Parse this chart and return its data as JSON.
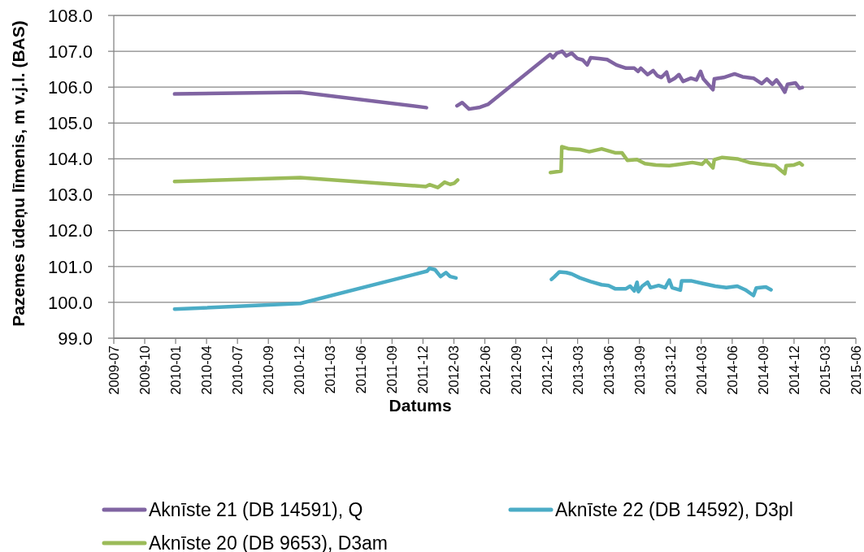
{
  "chart_data": {
    "type": "line",
    "xlabel": "Datums",
    "ylabel": "Pazemes ūdeņu līmenis, m v.j.l. (BAS)",
    "xlim": [
      "2009-07-06",
      "2015-06-05"
    ],
    "xticks": [
      {
        "value": "2009-07-06",
        "label": "2009-07"
      },
      {
        "value": "2009-10-04",
        "label": "2009-10"
      },
      {
        "value": "2010-01-02",
        "label": "2010-01"
      },
      {
        "value": "2010-04-02",
        "label": "2010-04"
      },
      {
        "value": "2010-07-01",
        "label": "2010-07"
      },
      {
        "value": "2010-09-29",
        "label": "2010-09"
      },
      {
        "value": "2010-12-28",
        "label": "2010-12"
      },
      {
        "value": "2011-03-28",
        "label": "2011-03"
      },
      {
        "value": "2011-06-26",
        "label": "2011-06"
      },
      {
        "value": "2011-09-24",
        "label": "2011-09"
      },
      {
        "value": "2011-12-23",
        "label": "2011-12"
      },
      {
        "value": "2012-03-22",
        "label": "2012-03"
      },
      {
        "value": "2012-06-20",
        "label": "2012-06"
      },
      {
        "value": "2012-09-18",
        "label": "2012-09"
      },
      {
        "value": "2012-12-17",
        "label": "2012-12"
      },
      {
        "value": "2013-03-17",
        "label": "2013-03"
      },
      {
        "value": "2013-06-15",
        "label": "2013-06"
      },
      {
        "value": "2013-09-13",
        "label": "2013-09"
      },
      {
        "value": "2013-12-12",
        "label": "2013-12"
      },
      {
        "value": "2014-03-12",
        "label": "2014-03"
      },
      {
        "value": "2014-06-10",
        "label": "2014-06"
      },
      {
        "value": "2014-09-08",
        "label": "2014-09"
      },
      {
        "value": "2014-12-07",
        "label": "2014-12"
      },
      {
        "value": "2015-03-07",
        "label": "2015-03"
      },
      {
        "value": "2015-06-05",
        "label": "2015-06"
      }
    ],
    "ylim": [
      99,
      108
    ],
    "yticks": [
      {
        "value": 99,
        "label": "99.0"
      },
      {
        "value": 100,
        "label": "100.0"
      },
      {
        "value": 101,
        "label": "101.0"
      },
      {
        "value": 102,
        "label": "102.0"
      },
      {
        "value": 103,
        "label": "103.0"
      },
      {
        "value": 104,
        "label": "104.0"
      },
      {
        "value": 105,
        "label": "105.0"
      },
      {
        "value": 106,
        "label": "106.0"
      },
      {
        "value": 107,
        "label": "107.0"
      },
      {
        "value": 108,
        "label": "108.0"
      }
    ],
    "grid": "y",
    "legend": "bottom",
    "marker": "none",
    "series": [
      {
        "name": "Aknīste 21 (DB 14591), Q",
        "color": "#8064a2",
        "x": [
          "2009-12-30",
          "2010-12-31",
          "2012-01-02",
          "2012-02-15",
          "2012-03-31",
          "2012-04-15",
          "2012-05-05",
          "2012-06-06",
          "2012-06-29",
          "2012-12-27",
          "2013-01-04",
          "2013-01-16",
          "2013-01-31",
          "2013-02-12",
          "2013-02-28",
          "2013-03-16",
          "2013-04-01",
          "2013-04-14",
          "2013-04-24",
          "2013-05-18",
          "2013-06-11",
          "2013-07-08",
          "2013-08-05",
          "2013-08-29",
          "2013-09-09",
          "2013-09-17",
          "2013-10-07",
          "2013-10-23",
          "2013-11-04",
          "2013-11-16",
          "2013-12-01",
          "2013-12-09",
          "2013-12-25",
          "2014-01-06",
          "2014-01-18",
          "2014-02-10",
          "2014-02-26",
          "2014-03-10",
          "2014-03-18",
          "2014-04-15",
          "2014-04-19",
          "2014-05-16",
          "2014-06-17",
          "2014-07-10",
          "2014-08-11",
          "2014-09-04",
          "2014-09-19",
          "2014-10-05",
          "2014-10-17",
          "2014-10-29",
          "2014-11-10",
          "2014-11-18",
          "2014-12-11",
          "2014-12-23",
          "2014-12-31"
        ],
        "values": [
          105.81,
          105.86,
          105.43,
          null,
          105.48,
          105.57,
          105.39,
          105.44,
          105.52,
          106.91,
          106.82,
          106.95,
          107.0,
          106.87,
          106.95,
          106.8,
          106.76,
          106.62,
          106.82,
          106.8,
          106.77,
          106.62,
          106.53,
          106.53,
          106.44,
          106.53,
          106.35,
          106.46,
          106.32,
          106.27,
          106.42,
          106.16,
          106.25,
          106.35,
          106.16,
          106.25,
          106.2,
          106.44,
          106.23,
          105.93,
          106.23,
          106.27,
          106.37,
          106.29,
          106.25,
          106.1,
          106.23,
          106.08,
          106.2,
          106.05,
          105.86,
          106.08,
          106.12,
          105.97,
          105.99
        ]
      },
      {
        "name": "Aknīste 22 (DB 14592), D3pl",
        "color": "#4bacc6",
        "x": [
          "2009-12-30",
          "2010-12-31",
          "2012-01-04",
          "2012-01-11",
          "2012-01-27",
          "2012-02-12",
          "2012-02-28",
          "2012-03-11",
          "2012-03-28",
          "2012-08-01",
          "2012-12-31",
          "2013-01-08",
          "2013-01-23",
          "2013-02-12",
          "2013-02-28",
          "2013-03-24",
          "2013-04-24",
          "2013-05-26",
          "2013-06-15",
          "2013-07-04",
          "2013-08-05",
          "2013-08-17",
          "2013-08-29",
          "2013-09-06",
          "2013-09-10",
          "2013-09-21",
          "2013-10-07",
          "2013-10-15",
          "2013-11-08",
          "2013-11-27",
          "2013-12-09",
          "2013-12-17",
          "2014-01-10",
          "2014-01-14",
          "2014-02-10",
          "2014-03-14",
          "2014-04-22",
          "2014-05-24",
          "2014-06-25",
          "2014-07-18",
          "2014-08-11",
          "2014-08-19",
          "2014-09-16",
          "2014-10-01"
        ],
        "values": [
          99.81,
          99.97,
          100.87,
          100.95,
          100.91,
          100.72,
          100.83,
          100.72,
          100.68,
          null,
          100.64,
          100.71,
          100.85,
          100.83,
          100.79,
          100.68,
          100.58,
          100.49,
          100.47,
          100.38,
          100.38,
          100.45,
          100.32,
          100.56,
          100.3,
          100.45,
          100.56,
          100.41,
          100.47,
          100.41,
          100.62,
          100.41,
          100.34,
          100.6,
          100.6,
          100.53,
          100.45,
          100.41,
          100.45,
          100.35,
          100.19,
          100.4,
          100.43,
          100.35
        ]
      },
      {
        "name": "Aknīste 20 (DB 9653), D3am",
        "color": "#9bbb59",
        "x": [
          "2009-12-30",
          "2010-12-31",
          "2011-12-31",
          "2012-01-11",
          "2012-02-04",
          "2012-02-24",
          "2012-03-11",
          "2012-03-23",
          "2012-04-02",
          "2012-08-01",
          "2012-12-28",
          "2013-01-28",
          "2013-01-30",
          "2013-02-20",
          "2013-03-24",
          "2013-04-20",
          "2013-05-26",
          "2013-07-04",
          "2013-07-24",
          "2013-08-09",
          "2013-09-06",
          "2013-09-29",
          "2013-10-31",
          "2013-12-09",
          "2014-01-10",
          "2014-02-14",
          "2014-03-14",
          "2014-03-26",
          "2014-04-15",
          "2014-04-19",
          "2014-05-12",
          "2014-06-25",
          "2014-08-03",
          "2014-09-04",
          "2014-10-13",
          "2014-11-10",
          "2014-11-14",
          "2014-12-07",
          "2014-12-23",
          "2014-12-31"
        ],
        "values": [
          103.37,
          103.48,
          103.23,
          103.28,
          103.2,
          103.35,
          103.29,
          103.32,
          103.41,
          null,
          103.62,
          103.66,
          104.34,
          104.28,
          104.26,
          104.2,
          104.28,
          104.17,
          104.17,
          103.96,
          103.98,
          103.87,
          103.83,
          103.81,
          103.85,
          103.9,
          103.85,
          103.96,
          103.75,
          103.98,
          104.04,
          104.0,
          103.89,
          103.85,
          103.81,
          103.59,
          103.81,
          103.83,
          103.89,
          103.83
        ]
      }
    ]
  }
}
